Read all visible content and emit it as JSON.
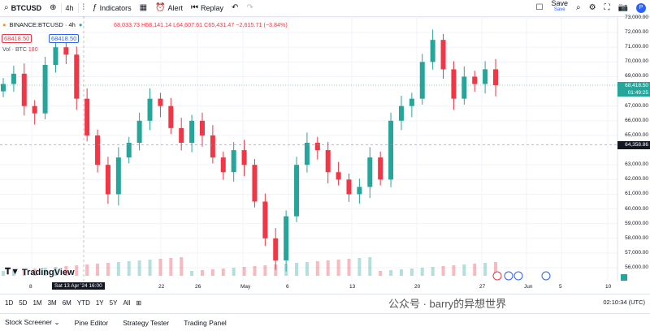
{
  "toolbar": {
    "symbol": "BTCUSD",
    "interval": "4h",
    "indicators": "Indicators",
    "alert": "Alert",
    "replay": "Replay",
    "save": "Save",
    "save_sub": "Save",
    "avatar": "P"
  },
  "legend": {
    "title": "BINANCE:BTCUSD · 4h",
    "ohlc": "68,033.73 H68,141.14 L64,607.61 C65,431.47 −2,615.71 (−3.84%)",
    "price_box_1": "68418.50",
    "price_box_2": "68418.50",
    "volume_label": "Vol · BTC",
    "volume_value": "180"
  },
  "price_axis": {
    "ticks": [
      "73,000.00",
      "72,000.00",
      "71,000.00",
      "70,000.00",
      "69,000.00",
      "67,000.00",
      "66,000.00",
      "65,000.00",
      "63,000.00",
      "62,000.00",
      "61,000.00",
      "60,000.00",
      "59,000.00",
      "58,000.00",
      "57,000.00",
      "56,000.00"
    ],
    "last_price": "68,418.50",
    "countdown": "01:49:25",
    "crosshair_price": "64,358.86"
  },
  "time_axis": {
    "labels": [
      "8",
      "22",
      "26",
      "May",
      "6",
      "13",
      "20",
      "27",
      "Jun",
      "5",
      "10"
    ],
    "crosshair_label": "Sat 13 Apr '24   16:00"
  },
  "logo": "TradingView",
  "ranges": [
    "1D",
    "5D",
    "1M",
    "3M",
    "6M",
    "YTD",
    "1Y",
    "5Y",
    "All"
  ],
  "clock": "02:10:34 (UTC)",
  "panels": [
    "Stock Screener",
    "Pine Editor",
    "Strategy Tester",
    "Trading Panel"
  ],
  "watermark": "公众号 · barry的异想世界",
  "colors": {
    "up": "#26a69a",
    "down": "#f23645",
    "accent": "#2962ff"
  },
  "chart_data": {
    "type": "candlestick",
    "title": "BINANCE:BTCUSD · 4h",
    "close": [
      68500,
      69200,
      67000,
      66500,
      69800,
      71000,
      70500,
      67500,
      65000,
      63000,
      61000,
      63500,
      64500,
      66000,
      67500,
      67000,
      65500,
      64500,
      66000,
      65000,
      63500,
      62500,
      64000,
      63000,
      60500,
      58000,
      56500,
      59500,
      63000,
      64500,
      64000,
      62500,
      62000,
      61000,
      61500,
      63500,
      62000,
      66000,
      67000,
      67500,
      70000,
      71500,
      69500,
      67500,
      69000,
      68500,
      69500,
      68418.5
    ],
    "ylim": [
      55500,
      73500
    ]
  }
}
